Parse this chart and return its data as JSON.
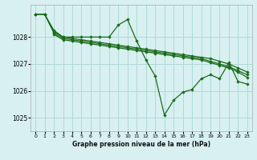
{
  "background_color": "#d8f0f0",
  "grid_color": "#b0d8d8",
  "line_color": "#1a6b1a",
  "marker_color": "#1a6b1a",
  "xlabel": "Graphe pression niveau de la mer (hPa)",
  "xlim": [
    -0.5,
    23.5
  ],
  "ylim": [
    1024.5,
    1029.2
  ],
  "yticks": [
    1025,
    1026,
    1027,
    1028
  ],
  "xticks": [
    0,
    1,
    2,
    3,
    4,
    5,
    6,
    7,
    8,
    9,
    10,
    11,
    12,
    13,
    14,
    15,
    16,
    17,
    18,
    19,
    20,
    21,
    22,
    23
  ],
  "series": [
    {
      "x": [
        0,
        1,
        2,
        3,
        4,
        5,
        6,
        7,
        8,
        9,
        10,
        11,
        12,
        13,
        14,
        15,
        16,
        17,
        18,
        19,
        20,
        21,
        22,
        23
      ],
      "y": [
        1028.85,
        1028.85,
        1028.25,
        1028.0,
        1028.0,
        1028.0,
        1028.0,
        1028.0,
        1028.0,
        1028.45,
        1028.65,
        1027.85,
        1027.15,
        1026.55,
        1025.1,
        1025.65,
        1025.95,
        1026.05,
        1026.45,
        1026.6,
        1026.45,
        1027.05,
        1026.35,
        1026.25
      ]
    },
    {
      "x": [
        0,
        1,
        2,
        3,
        4,
        5,
        6,
        7,
        8,
        9,
        10,
        11,
        12,
        13,
        14,
        15,
        16,
        17,
        18,
        19,
        20,
        21,
        22,
        23
      ],
      "y": [
        1028.85,
        1028.85,
        1028.2,
        1028.0,
        1027.95,
        1027.9,
        1027.85,
        1027.8,
        1027.75,
        1027.7,
        1027.65,
        1027.6,
        1027.55,
        1027.5,
        1027.45,
        1027.4,
        1027.35,
        1027.3,
        1027.25,
        1027.2,
        1027.1,
        1027.0,
        1026.85,
        1026.7
      ]
    },
    {
      "x": [
        0,
        1,
        2,
        3,
        4,
        5,
        6,
        7,
        8,
        9,
        10,
        11,
        12,
        13,
        14,
        15,
        16,
        17,
        18,
        19,
        20,
        21,
        22,
        23
      ],
      "y": [
        1028.85,
        1028.85,
        1028.15,
        1027.95,
        1027.9,
        1027.85,
        1027.8,
        1027.75,
        1027.7,
        1027.65,
        1027.6,
        1027.55,
        1027.5,
        1027.45,
        1027.4,
        1027.35,
        1027.3,
        1027.25,
        1027.2,
        1027.1,
        1027.0,
        1026.9,
        1026.75,
        1026.6
      ]
    },
    {
      "x": [
        2,
        3,
        4,
        5,
        6,
        7,
        8,
        9,
        10,
        11,
        12,
        13,
        14,
        15,
        16,
        17,
        18,
        19,
        20,
        21,
        22,
        23
      ],
      "y": [
        1028.1,
        1027.9,
        1027.85,
        1027.8,
        1027.75,
        1027.7,
        1027.65,
        1027.6,
        1027.55,
        1027.5,
        1027.45,
        1027.4,
        1027.35,
        1027.3,
        1027.25,
        1027.2,
        1027.15,
        1027.05,
        1026.95,
        1026.85,
        1026.7,
        1026.5
      ]
    }
  ]
}
